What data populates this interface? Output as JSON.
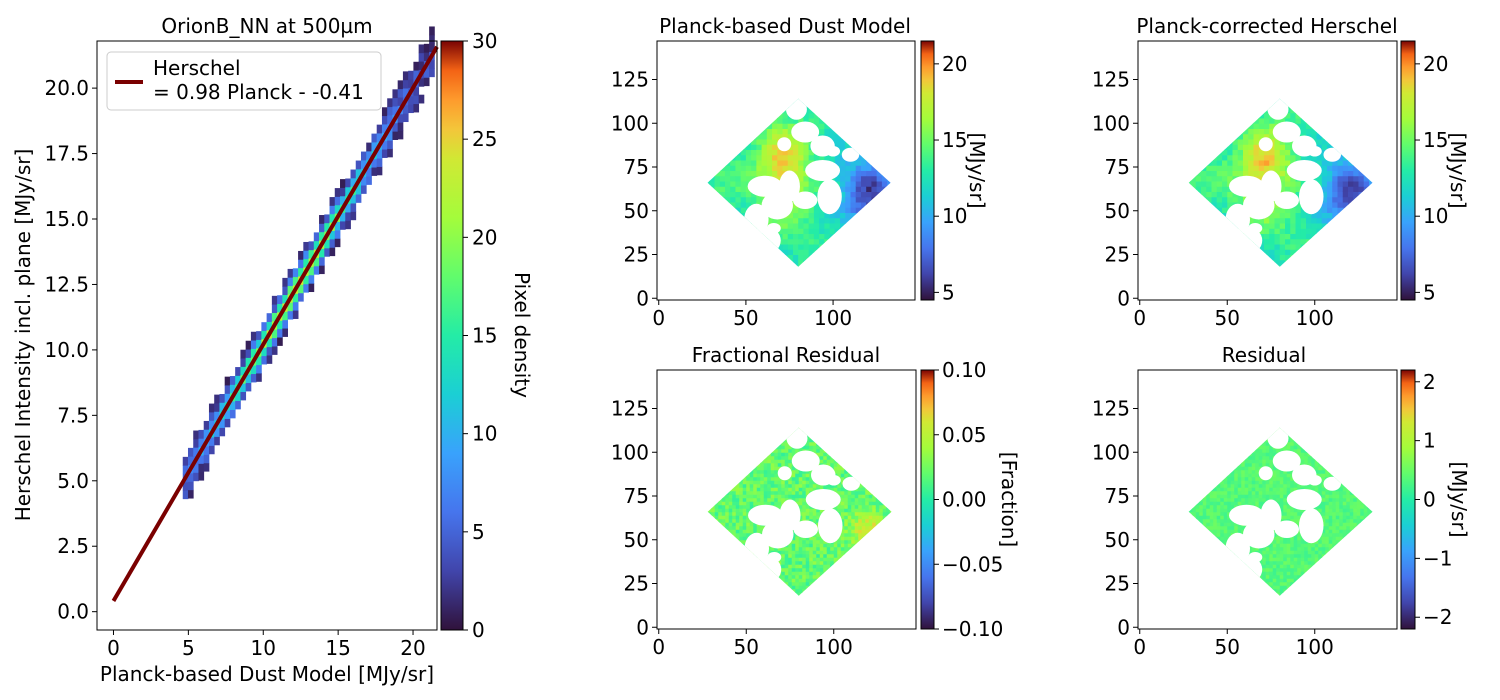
{
  "chart_data": [
    {
      "type": "heatmap",
      "title": "OrionB_NN at 500µm",
      "xlabel": "Planck-based Dust Model [MJy/sr]",
      "ylabel": "Herschel Intensity incl. plane [MJy/sr]",
      "xlim": [
        -1.1,
        21.6
      ],
      "ylim": [
        -0.7,
        21.8
      ],
      "xticks": [
        0,
        5,
        10,
        15,
        20
      ],
      "xtick_labels": [
        "0",
        "5",
        "10",
        "15",
        "20"
      ],
      "yticks": [
        0.0,
        2.5,
        5.0,
        7.5,
        10.0,
        12.5,
        15.0,
        17.5,
        20.0
      ],
      "ytick_labels": [
        "0.0",
        "2.5",
        "5.0",
        "7.5",
        "10.0",
        "12.5",
        "15.0",
        "17.5",
        "20.0"
      ],
      "density_points": {
        "x_start": 4.8,
        "x_end": 21.5,
        "x_step": 0.35,
        "slope": 0.98,
        "offset": -0.41,
        "peak_center": 12.0,
        "peak_value": 22
      },
      "fit_line": {
        "slope": 0.98,
        "intercept": 0.41,
        "x_range": [
          0,
          21.6
        ],
        "color": "#7a0000"
      },
      "legend": {
        "label_line1": "Herschel",
        "label_line2": "= 0.98 Planck - -0.41",
        "position": "upper left"
      },
      "colorbar": {
        "label": "Pixel density",
        "range": [
          0,
          30
        ],
        "ticks": [
          0,
          5,
          10,
          15,
          20,
          25,
          30
        ],
        "tick_labels": [
          "0",
          "5",
          "10",
          "15",
          "20",
          "25",
          "30"
        ],
        "cmap": "turbo"
      }
    },
    {
      "type": "heatmap",
      "title": "Planck-based Dust Model",
      "xlim": [
        -1,
        147
      ],
      "ylim": [
        -1,
        147
      ],
      "xticks": [
        0,
        50,
        100
      ],
      "xtick_labels": [
        "0",
        "50",
        "100"
      ],
      "yticks": [
        0,
        25,
        50,
        75,
        100,
        125
      ],
      "ytick_labels": [
        "0",
        "25",
        "50",
        "75",
        "100",
        "125"
      ],
      "map_style": "intensity",
      "colorbar": {
        "label": "[MJy/sr]",
        "range": [
          4.5,
          21.5
        ],
        "ticks": [
          5,
          10,
          15,
          20
        ],
        "tick_labels": [
          "5",
          "10",
          "15",
          "20"
        ],
        "cmap": "turbo"
      }
    },
    {
      "type": "heatmap",
      "title": "Planck-corrected Herschel",
      "xlim": [
        -1,
        147
      ],
      "ylim": [
        -1,
        147
      ],
      "xticks": [
        0,
        50,
        100
      ],
      "xtick_labels": [
        "0",
        "50",
        "100"
      ],
      "yticks": [
        0,
        25,
        50,
        75,
        100,
        125
      ],
      "ytick_labels": [
        "0",
        "25",
        "50",
        "75",
        "100",
        "125"
      ],
      "map_style": "intensity",
      "colorbar": {
        "label": "[MJy/sr]",
        "range": [
          4.5,
          21.5
        ],
        "ticks": [
          5,
          10,
          15,
          20
        ],
        "tick_labels": [
          "5",
          "10",
          "15",
          "20"
        ],
        "cmap": "turbo"
      }
    },
    {
      "type": "heatmap",
      "title": "Fractional Residual",
      "xlim": [
        -1,
        147
      ],
      "ylim": [
        -1,
        147
      ],
      "xticks": [
        0,
        50,
        100
      ],
      "xtick_labels": [
        "0",
        "50",
        "100"
      ],
      "yticks": [
        0,
        25,
        50,
        75,
        100,
        125
      ],
      "ytick_labels": [
        "0",
        "25",
        "50",
        "75",
        "100",
        "125"
      ],
      "map_style": "fractional",
      "colorbar": {
        "label": "[Fraction]",
        "range": [
          -0.1,
          0.1
        ],
        "ticks": [
          -0.1,
          -0.05,
          0.0,
          0.05,
          0.1
        ],
        "tick_labels": [
          "−0.10",
          "−0.05",
          "0.00",
          "0.05",
          "0.10"
        ],
        "cmap": "turbo"
      }
    },
    {
      "type": "heatmap",
      "title": "Residual",
      "xlim": [
        -1,
        147
      ],
      "ylim": [
        -1,
        147
      ],
      "xticks": [
        0,
        50,
        100
      ],
      "xtick_labels": [
        "0",
        "50",
        "100"
      ],
      "yticks": [
        0,
        25,
        50,
        75,
        100,
        125
      ],
      "ytick_labels": [
        "0",
        "25",
        "50",
        "75",
        "100",
        "125"
      ],
      "map_style": "residual",
      "colorbar": {
        "label": "[MJy/sr]",
        "range": [
          -2.2,
          2.2
        ],
        "ticks": [
          -2,
          -1,
          0,
          1,
          2
        ],
        "tick_labels": [
          "−2",
          "−1",
          "0",
          "1",
          "2"
        ],
        "cmap": "turbo"
      }
    }
  ]
}
